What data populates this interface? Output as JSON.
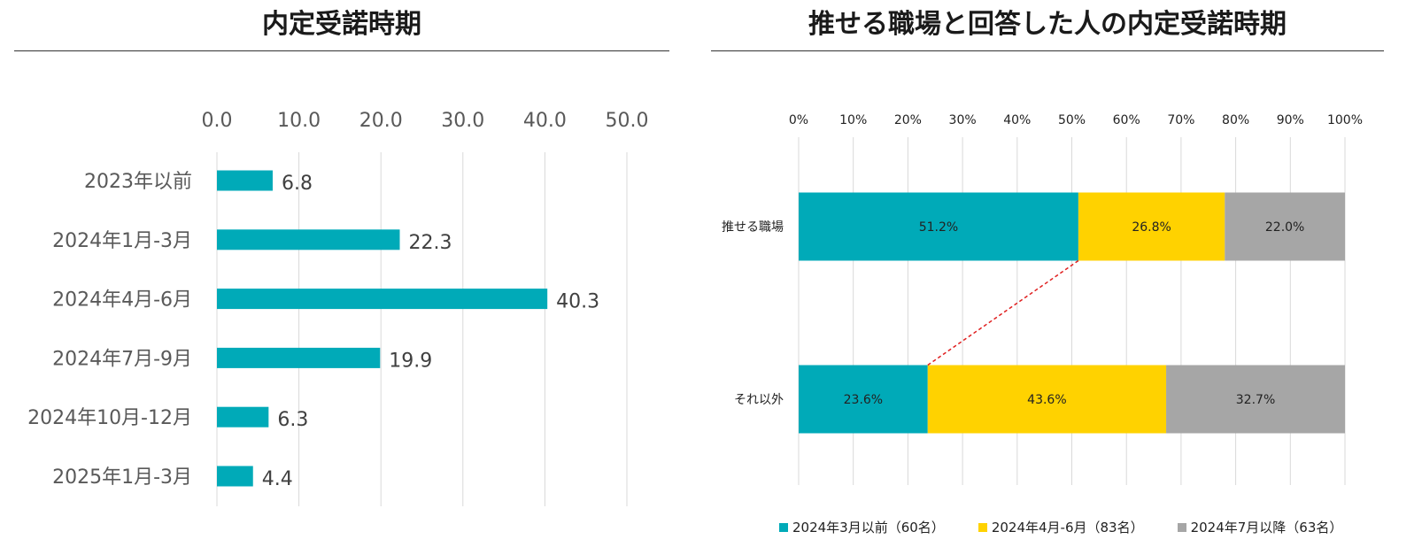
{
  "chart_data": [
    {
      "type": "bar",
      "orientation": "horizontal",
      "title": "内定受諾時期",
      "categories": [
        "2023年以前",
        "2024年1月-3月",
        "2024年4月-6月",
        "2024年7月-9月",
        "2024年10月-12月",
        "2025年1月-3月"
      ],
      "values": [
        6.8,
        22.3,
        40.3,
        19.9,
        6.3,
        4.4
      ],
      "data_labels": [
        "6.8",
        "22.3",
        "40.3",
        "19.9",
        "6.3",
        "4.4"
      ],
      "xlim": [
        0,
        50
      ],
      "ticks": [
        "0.0",
        "10.0",
        "20.0",
        "30.0",
        "40.0",
        "50.0"
      ],
      "color": "#00AAB8",
      "grid": true
    },
    {
      "type": "bar",
      "orientation": "horizontal",
      "stacked": "percent",
      "title": "推せる職場と回答した人の内定受諾時期",
      "categories": [
        "推せる職場",
        "それ以外"
      ],
      "series": [
        {
          "name": "2024年3月以前（60名）",
          "values": [
            51.2,
            23.6
          ],
          "labels": [
            "51.2%",
            "23.6%"
          ],
          "color": "#00AAB8"
        },
        {
          "name": "2024年4月-6月（83名）",
          "values": [
            26.8,
            43.6
          ],
          "labels": [
            "26.8%",
            "43.6%"
          ],
          "color": "#FFD200"
        },
        {
          "name": "2024年7月以降（63名）",
          "values": [
            22.0,
            32.7
          ],
          "labels": [
            "22.0%",
            "32.7%"
          ],
          "color": "#A6A6A6"
        }
      ],
      "xlim": [
        0,
        100
      ],
      "ticks": [
        "0%",
        "10%",
        "20%",
        "30%",
        "40%",
        "50%",
        "60%",
        "70%",
        "80%",
        "90%",
        "100%"
      ],
      "connector": {
        "style": "dashed",
        "color": "#E02020"
      },
      "grid": true
    }
  ]
}
